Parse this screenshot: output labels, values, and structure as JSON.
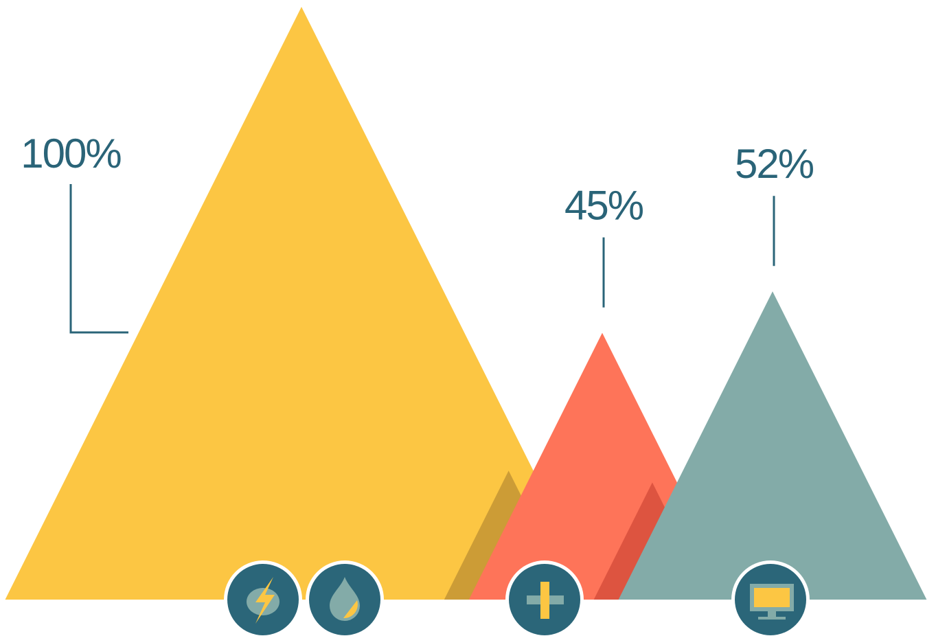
{
  "chart_data": {
    "type": "triangle",
    "ylim": [
      0,
      100
    ],
    "series": [
      {
        "values": [
          100,
          45,
          52
        ],
        "value_labels": [
          "100%",
          "45%",
          "52%"
        ],
        "colors": [
          "#fcc643",
          "#fe7459",
          "#83aba8"
        ]
      }
    ]
  }
}
